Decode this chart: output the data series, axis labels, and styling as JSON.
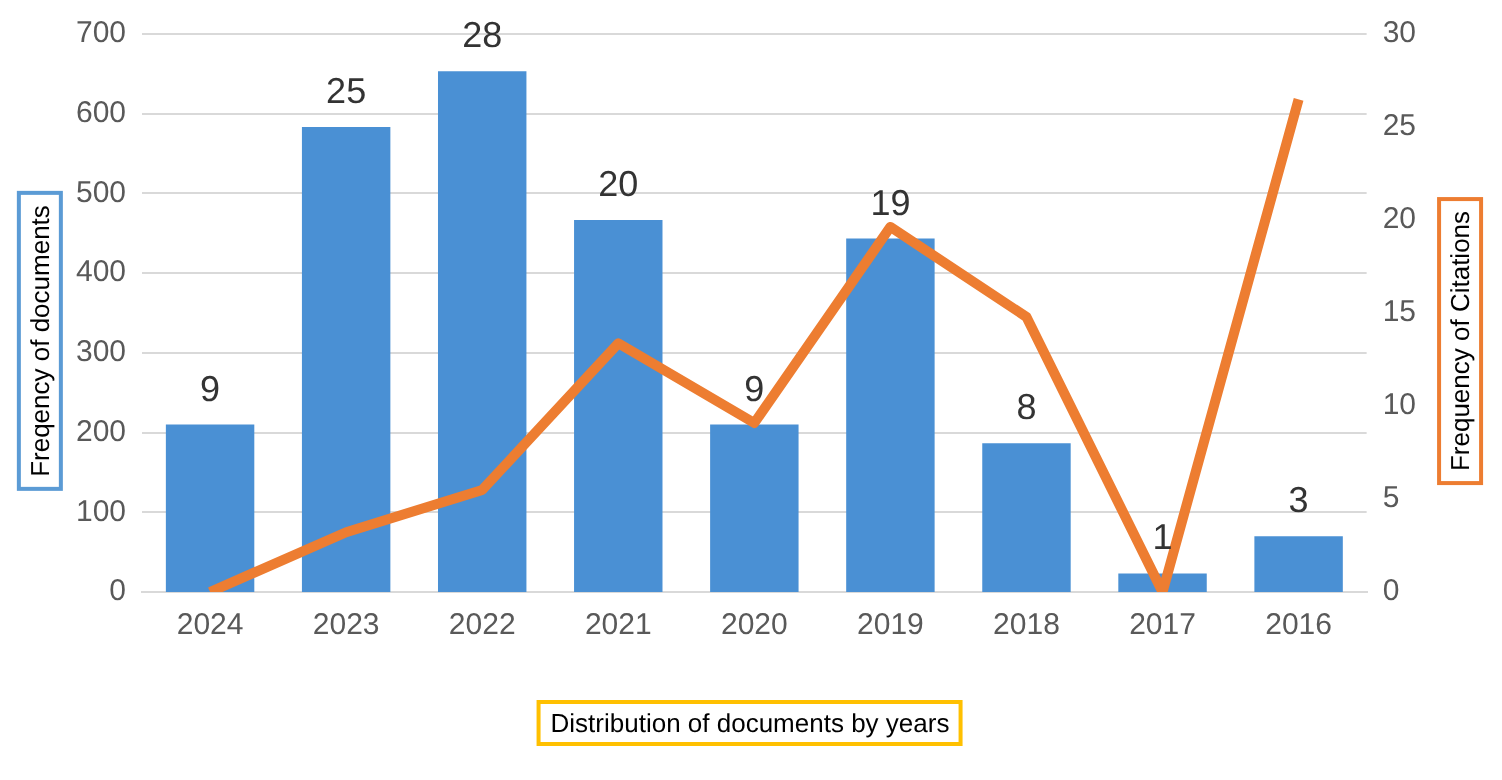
{
  "chart_data": {
    "type": "bar",
    "xlabel": "Distribution of documents by years",
    "ylabel": "Freqency of documents",
    "y2label": "Frequency of Citations",
    "categories": [
      "2024",
      "2023",
      "2022",
      "2021",
      "2020",
      "2019",
      "2018",
      "2017",
      "2016"
    ],
    "series": [
      {
        "axis": "y2",
        "color": "#4a90d4",
        "values": [
          9,
          25,
          28,
          20,
          9,
          19,
          8,
          1,
          3
        ],
        "data_labels": true
      },
      {
        "type": "line",
        "axis": "y",
        "color": "#ed7d31",
        "values": [
          0,
          75,
          128,
          312,
          212,
          458,
          345,
          0,
          618
        ]
      }
    ],
    "ylim": [
      0,
      700
    ],
    "yticks": [
      0,
      100,
      200,
      300,
      400,
      500,
      600,
      700
    ],
    "y2lim": [
      0,
      30
    ],
    "y2ticks": [
      0,
      5,
      10,
      15,
      20,
      25,
      30
    ],
    "grid": "y",
    "legend": false,
    "marker": "none"
  }
}
